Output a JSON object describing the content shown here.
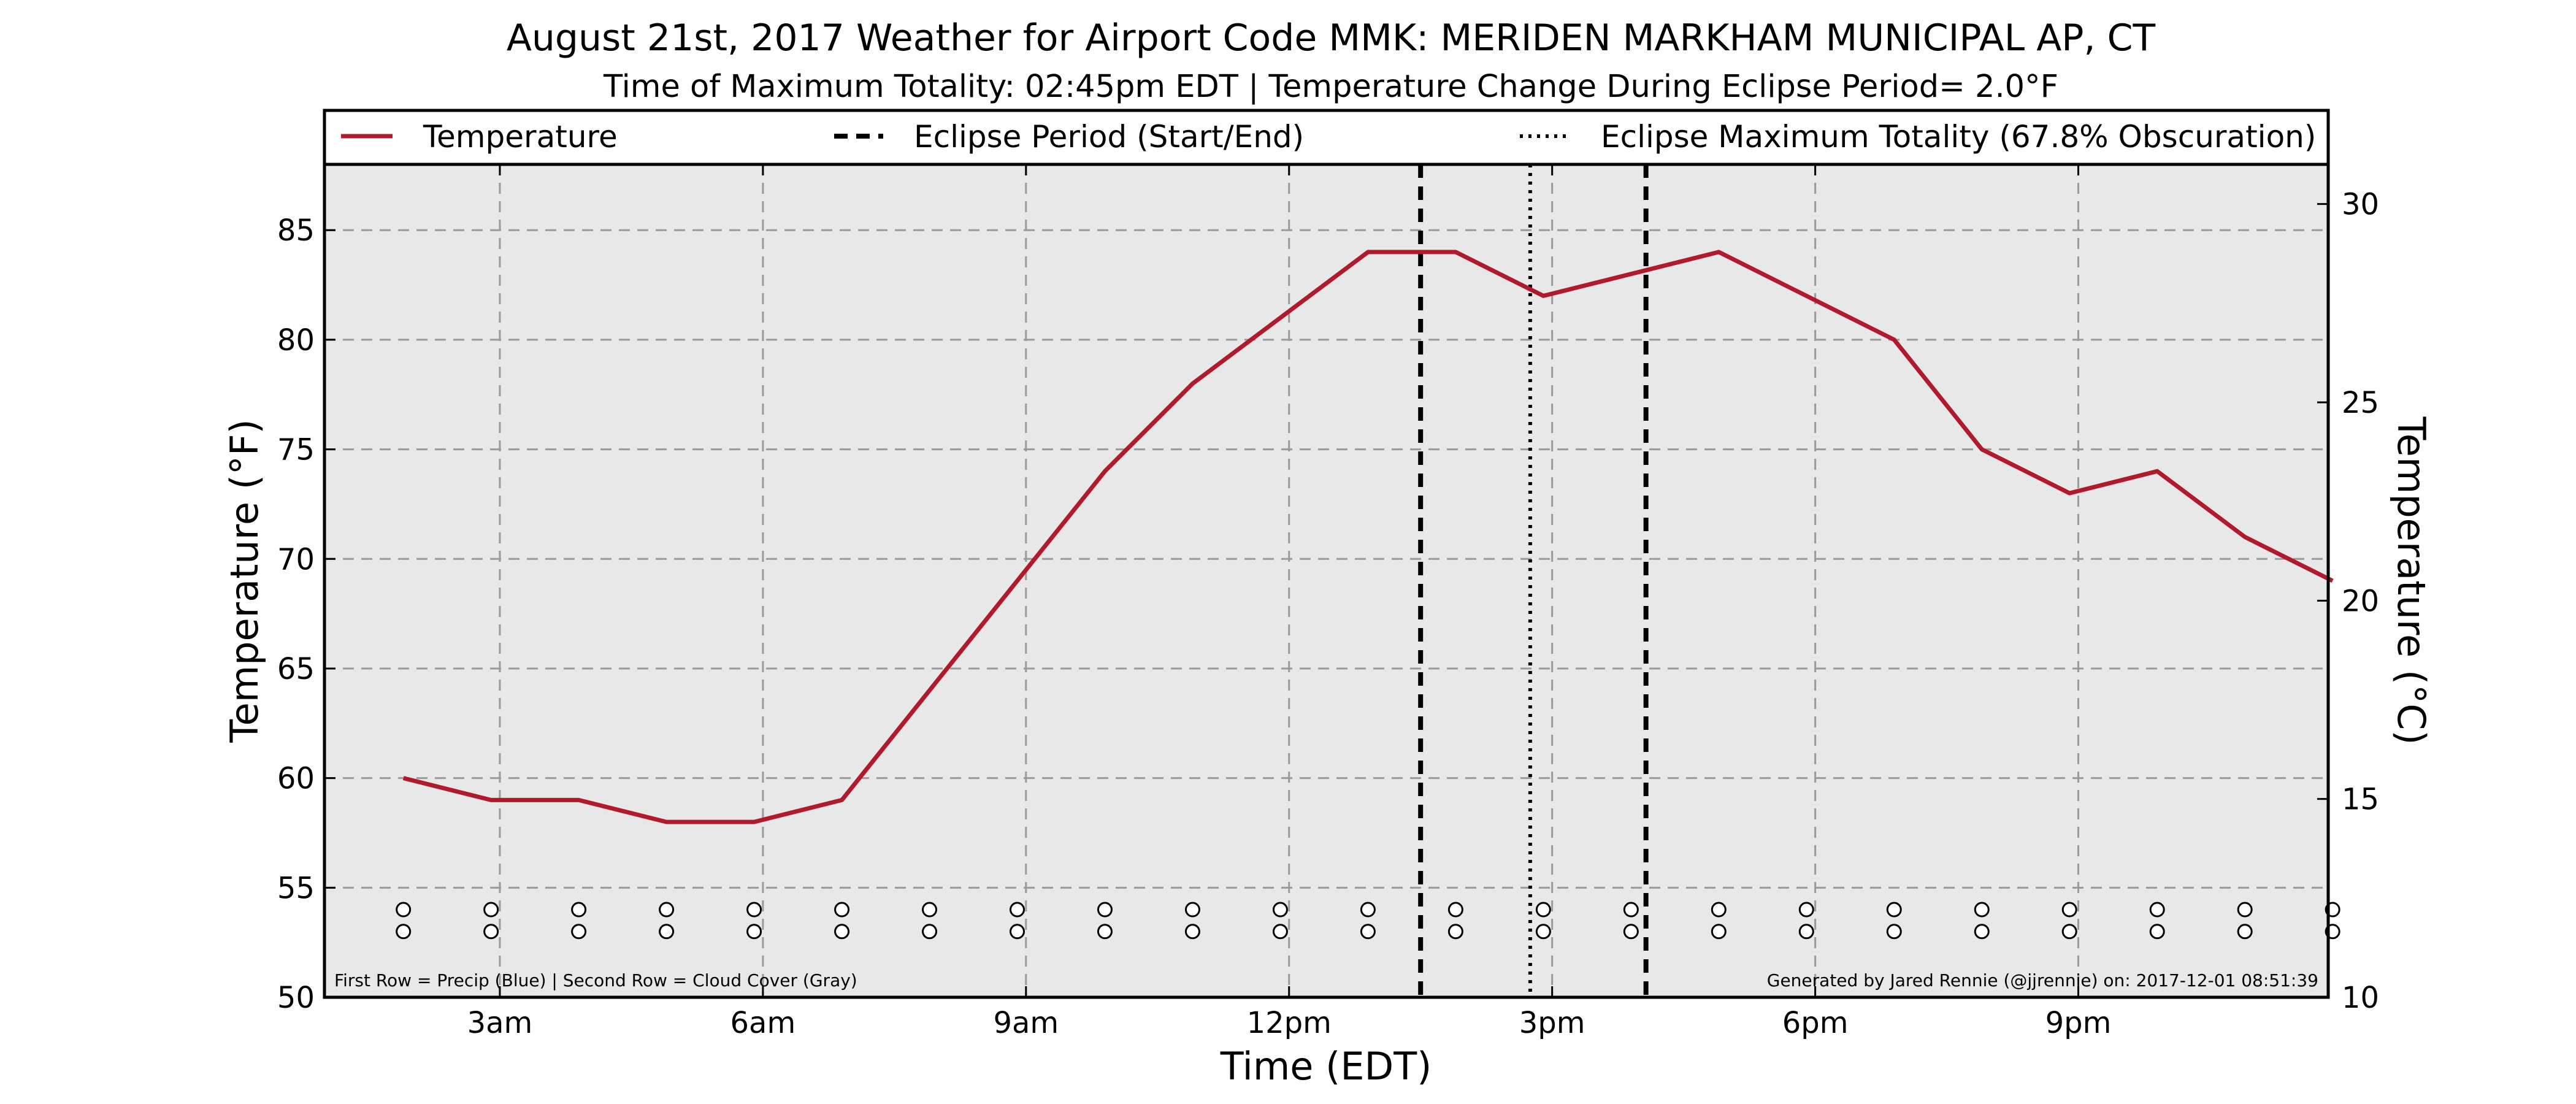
{
  "chart_data": {
    "type": "line",
    "title": "August 21st, 2017 Weather for Airport Code MMK: MERIDEN MARKHAM MUNICIPAL AP, CT",
    "subtitle": "Time of Maximum Totality: 02:45pm EDT | Temperature Change During Eclipse Period= 2.0°F",
    "xlabel": "Time (EDT)",
    "ylabel": "Temperature (°F)",
    "y2label": "Temperature (°C)",
    "ylim": [
      50,
      88
    ],
    "y2lim": [
      10,
      31
    ],
    "xlim": [
      1.0,
      23.85
    ],
    "x_ticks": [
      {
        "hour": 3,
        "label": "3am"
      },
      {
        "hour": 6,
        "label": "6am"
      },
      {
        "hour": 9,
        "label": "9am"
      },
      {
        "hour": 12,
        "label": "12pm"
      },
      {
        "hour": 15,
        "label": "3pm"
      },
      {
        "hour": 18,
        "label": "6pm"
      },
      {
        "hour": 21,
        "label": "9pm"
      }
    ],
    "y_ticks": [
      50,
      55,
      60,
      65,
      70,
      75,
      80,
      85
    ],
    "y2_ticks": [
      10,
      15,
      20,
      25,
      30
    ],
    "grid": true,
    "legend_position": "top",
    "series": [
      {
        "name": "Temperature",
        "color": "#b11a2b",
        "x": [
          1.9,
          2.9,
          3.9,
          4.9,
          5.9,
          6.9,
          7.9,
          8.9,
          9.9,
          10.9,
          11.9,
          12.9,
          13.9,
          14.9,
          15.9,
          16.9,
          17.9,
          18.9,
          19.9,
          20.9,
          21.9,
          22.9,
          23.9
        ],
        "values": [
          60,
          59,
          59,
          58,
          58,
          59,
          64,
          69,
          74,
          78,
          81,
          84,
          84,
          82,
          83,
          84,
          82,
          80,
          75,
          73,
          74,
          71,
          69
        ]
      }
    ],
    "eclipse_start_hour": 13.5,
    "eclipse_end_hour": 16.07,
    "eclipse_max_hour": 14.75,
    "legend": {
      "temperature": "Temperature",
      "eclipse_period": "Eclipse Period (Start/End)",
      "eclipse_max": "Eclipse Maximum Totality (67.8% Obscuration)"
    },
    "marker_rows": {
      "hours": [
        1.9,
        2.9,
        3.9,
        4.9,
        5.9,
        6.9,
        7.9,
        8.9,
        9.9,
        10.9,
        11.9,
        12.9,
        13.9,
        14.9,
        15.9,
        16.9,
        17.9,
        18.9,
        19.9,
        20.9,
        21.9,
        22.9,
        23.9
      ],
      "precip_level": 54,
      "cloud_level": 53
    },
    "footnote_left": "First Row = Precip (Blue) | Second Row = Cloud Cover (Gray)",
    "footnote_right": "Generated by Jared Rennie (@jjrennie) on: 2017-12-01 08:51:39"
  }
}
